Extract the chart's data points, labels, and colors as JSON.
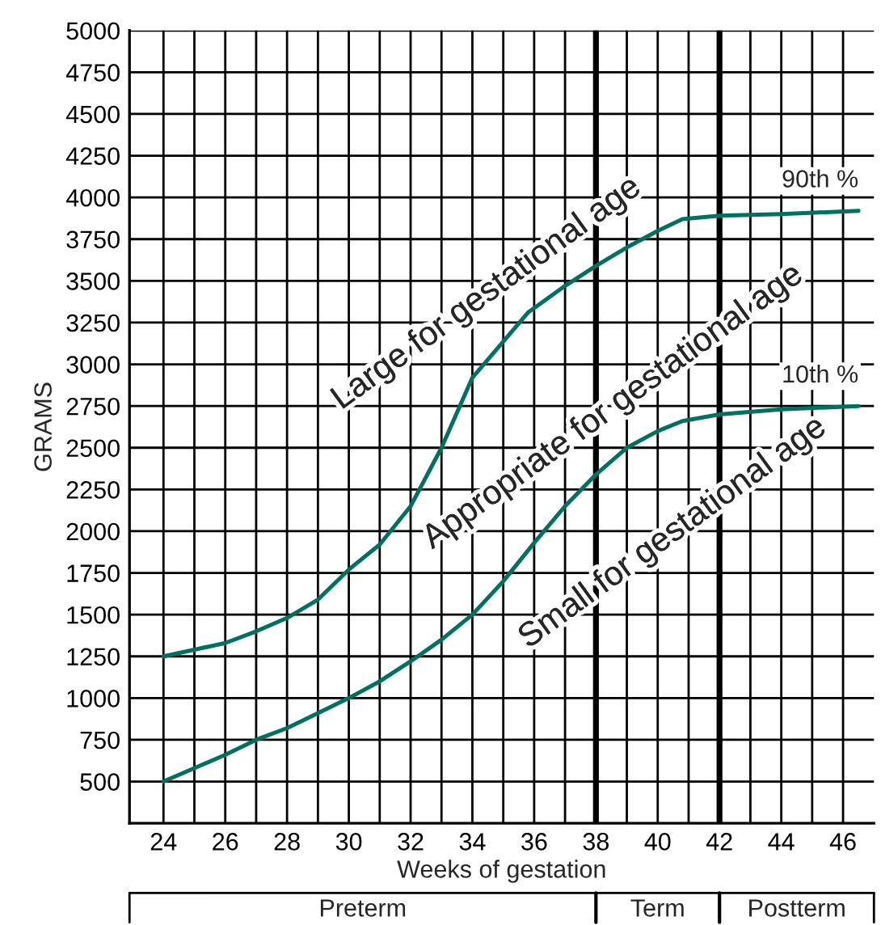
{
  "chart_data": {
    "type": "line",
    "xlabel": "Weeks of gestation",
    "ylabel": "GRAMS",
    "xlim": [
      22.9,
      47
    ],
    "ylim": [
      250,
      5000
    ],
    "xticks": [
      24,
      {
        "value": 25,
        "label": null
      },
      26,
      {
        "value": 27,
        "label": null
      },
      28,
      {
        "value": 29,
        "label": null
      },
      30,
      {
        "value": 31,
        "label": null
      },
      32,
      {
        "value": 33,
        "label": null
      },
      34,
      {
        "value": 35,
        "label": null
      },
      36,
      {
        "value": 37,
        "label": null
      },
      38,
      {
        "value": 39,
        "label": null
      },
      40,
      {
        "value": 41,
        "label": null
      },
      42,
      {
        "value": 43,
        "label": null
      },
      44,
      {
        "value": 45,
        "label": null
      },
      46
    ],
    "yticks": [
      500,
      750,
      1000,
      1250,
      1500,
      1750,
      2000,
      2250,
      2500,
      2750,
      3000,
      3250,
      3500,
      3750,
      4000,
      4250,
      4500,
      4750,
      5000
    ],
    "grid": true,
    "legend": false,
    "marker": "none",
    "line_style": "solid",
    "series": [
      {
        "name": "90th %",
        "color": "#00705f",
        "x": [
          24,
          25,
          26,
          27,
          28,
          29,
          30,
          31,
          32,
          33,
          34,
          35.8,
          37,
          38,
          39,
          40,
          40.8,
          42,
          44,
          46.5
        ],
        "values": [
          1250,
          1290,
          1330,
          1400,
          1480,
          1590,
          1770,
          1920,
          2150,
          2500,
          2920,
          3310,
          3470,
          3590,
          3700,
          3800,
          3870,
          3890,
          3900,
          3920
        ]
      },
      {
        "name": "10th %",
        "color": "#00705f",
        "x": [
          24,
          25,
          26,
          27,
          28,
          29,
          30,
          31,
          32,
          33,
          34,
          35,
          36,
          37,
          38,
          39,
          40,
          40.8,
          42,
          44,
          46.5
        ],
        "values": [
          500,
          580,
          660,
          750,
          820,
          910,
          1000,
          1100,
          1220,
          1350,
          1500,
          1700,
          1930,
          2150,
          2340,
          2500,
          2600,
          2660,
          2700,
          2730,
          2750
        ]
      }
    ],
    "ref_lines": [
      {
        "axis": "x",
        "value": 38,
        "label": "Term",
        "color": "#000000"
      },
      {
        "axis": "x",
        "value": 42,
        "label": "Postterm",
        "color": "#000000"
      }
    ],
    "annotations": [
      "Large for gestational age",
      "Appropriate for gestational age",
      "Small for gestational age",
      "Preterm"
    ]
  }
}
